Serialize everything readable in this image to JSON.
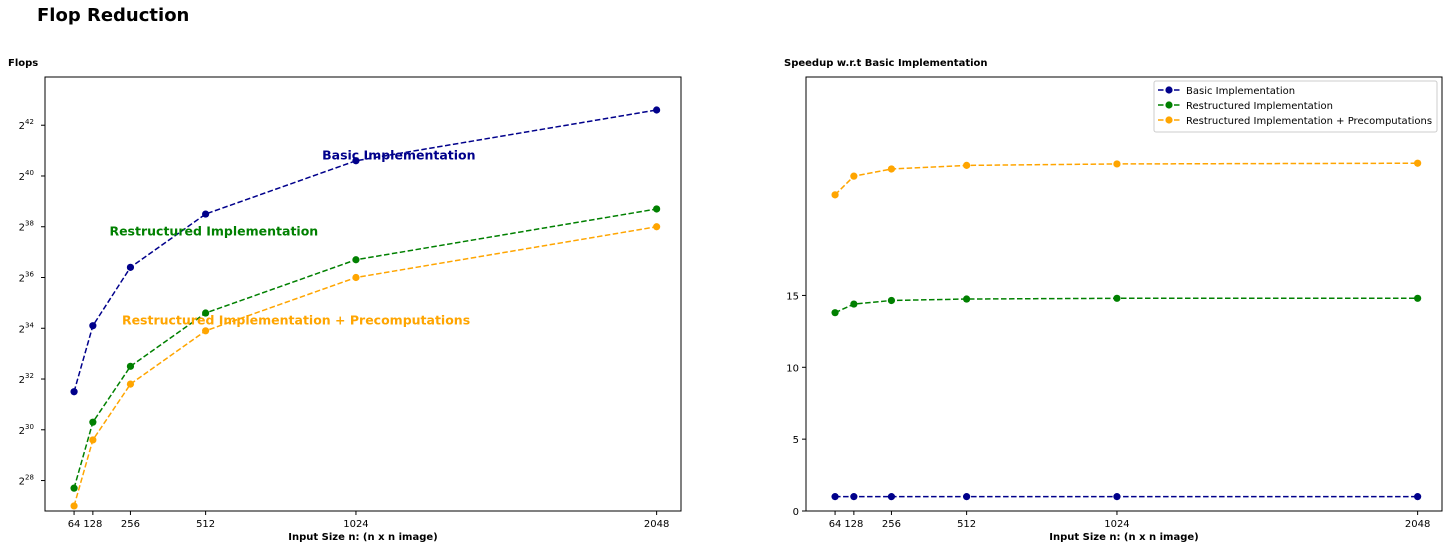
{
  "figure": {
    "suptitle": "Flop Reduction"
  },
  "colors": {
    "basic": "#00008b",
    "restructured": "#008000",
    "precomp": "#ffa500",
    "axes": "#000000"
  },
  "chart_data": [
    {
      "type": "line",
      "title": "Flops",
      "xlabel": "Input Size n: (n x n image)",
      "ylabel": "",
      "y_scale": "log2",
      "xlim": [
        -35,
        2131
      ],
      "ylim_log2": [
        26.8,
        43.9
      ],
      "x": [
        64,
        128,
        256,
        512,
        1024,
        2048
      ],
      "xticks": [
        64,
        128,
        256,
        512,
        1024,
        2048
      ],
      "yticks": [
        {
          "base": "2",
          "exp": "28",
          "log2": 28
        },
        {
          "base": "2",
          "exp": "30",
          "log2": 30
        },
        {
          "base": "2",
          "exp": "32",
          "log2": 32
        },
        {
          "base": "2",
          "exp": "34",
          "log2": 34
        },
        {
          "base": "2",
          "exp": "36",
          "log2": 36
        },
        {
          "base": "2",
          "exp": "38",
          "log2": 38
        },
        {
          "base": "2",
          "exp": "40",
          "log2": 40
        },
        {
          "base": "2",
          "exp": "42",
          "log2": 42
        }
      ],
      "series": [
        {
          "key": "basic",
          "name": "Basic Implementation",
          "log2_values": [
            31.5,
            34.1,
            36.4,
            38.5,
            40.6,
            42.6
          ]
        },
        {
          "key": "restructured",
          "name": "Restructured Implementation",
          "log2_values": [
            27.7,
            30.3,
            32.5,
            34.6,
            36.7,
            38.7
          ]
        },
        {
          "key": "precomp",
          "name": "Restructured Implementation + Precomputations",
          "log2_values": [
            27.0,
            29.6,
            31.8,
            33.9,
            36.0,
            38.0
          ]
        }
      ],
      "annotations": [
        {
          "key": "basic",
          "text": "Basic Implementation",
          "x": 1170,
          "log2_y": 40.65
        },
        {
          "key": "restructured",
          "text": "Restructured Implementation",
          "x": 540,
          "log2_y": 37.65
        },
        {
          "key": "precomp",
          "text": "Restructured Implementation + Precomputations",
          "x": 820,
          "log2_y": 34.15
        }
      ],
      "grid": false
    },
    {
      "type": "line",
      "title": "Speedup w.r.t Basic Implementation",
      "xlabel": "Input Size n: (n x n image)",
      "ylabel": "",
      "xlim": [
        -35,
        2131
      ],
      "ylim": [
        0,
        30.2
      ],
      "x": [
        64,
        128,
        256,
        512,
        1024,
        2048
      ],
      "xticks": [
        64,
        128,
        256,
        512,
        1024,
        2048
      ],
      "yticks": [
        0,
        5,
        10,
        15
      ],
      "series": [
        {
          "key": "basic",
          "name": "Basic Implementation",
          "values": [
            1,
            1,
            1,
            1,
            1,
            1
          ]
        },
        {
          "key": "restructured",
          "name": "Restructured Implementation",
          "values": [
            13.8,
            14.4,
            14.65,
            14.75,
            14.8,
            14.8
          ]
        },
        {
          "key": "precomp",
          "name": "Restructured Implementation + Precomputations",
          "values": [
            22.0,
            23.3,
            23.8,
            24.05,
            24.15,
            24.2
          ]
        }
      ],
      "legend": {
        "position": "top-right",
        "entries": [
          {
            "key": "basic",
            "label": "Basic Implementation"
          },
          {
            "key": "restructured",
            "label": "Restructured Implementation"
          },
          {
            "key": "precomp",
            "label": "Restructured Implementation + Precomputations"
          }
        ]
      },
      "grid": false
    }
  ]
}
